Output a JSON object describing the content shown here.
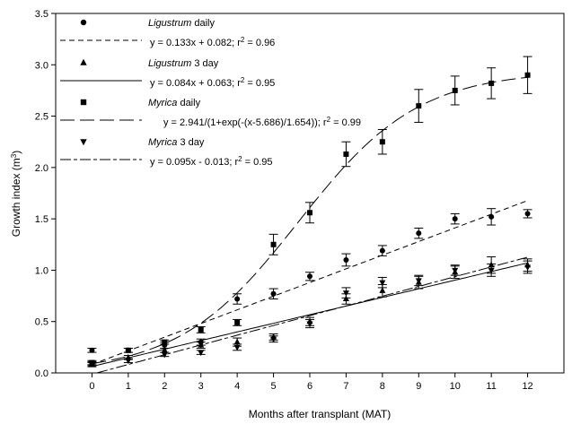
{
  "chart_data": {
    "type": "scatter",
    "xlabel": "Months after transplant (MAT)",
    "ylabel": "Growth index (m",
    "ylabel_sup": "3",
    "ylabel_close": ")",
    "xlim": [
      -1,
      13
    ],
    "ylim": [
      0,
      3.5
    ],
    "xticks": [
      0,
      1,
      2,
      3,
      4,
      5,
      6,
      7,
      8,
      9,
      10,
      11,
      12
    ],
    "yticks": [
      0.0,
      0.5,
      1.0,
      1.5,
      2.0,
      2.5,
      3.0,
      3.5
    ],
    "ytick_labels": [
      "0.0",
      "0.5",
      "1.0",
      "1.5",
      "2.0",
      "2.5",
      "3.0",
      "3.5"
    ],
    "grid": false,
    "legend_position": "top-left",
    "series": [
      {
        "name_italic": "Ligustrum",
        "name_rest": " daily",
        "marker": "circle",
        "dash": "6,4",
        "x": [
          0,
          1,
          2,
          3,
          4,
          5,
          6,
          7,
          8,
          9,
          10,
          11,
          12
        ],
        "y": [
          0.22,
          0.22,
          0.27,
          0.3,
          0.72,
          0.77,
          0.94,
          1.1,
          1.19,
          1.36,
          1.5,
          1.52,
          1.55
        ],
        "err": [
          0.02,
          0.02,
          0.03,
          0.03,
          0.05,
          0.05,
          0.04,
          0.06,
          0.05,
          0.05,
          0.05,
          0.08,
          0.04
        ],
        "eq_parts": [
          "y = 0.133x + 0.082; r",
          "2",
          " = 0.96"
        ],
        "fit": {
          "kind": "linear",
          "a": 0.133,
          "b": 0.082
        }
      },
      {
        "name_italic": "Ligustrum",
        "name_rest": " 3 day",
        "marker": "triangle-up",
        "dash": "",
        "x": [
          0,
          1,
          2,
          3,
          4,
          5,
          6,
          7,
          8,
          9,
          10,
          11,
          12
        ],
        "y": [
          0.08,
          0.15,
          0.22,
          0.27,
          0.3,
          0.35,
          0.5,
          0.72,
          0.8,
          0.88,
          0.98,
          1.05,
          1.05
        ],
        "err": [
          0.02,
          0.02,
          0.02,
          0.03,
          0.04,
          0.03,
          0.04,
          0.05,
          0.06,
          0.06,
          0.06,
          0.08,
          0.06
        ],
        "eq_parts": [
          "y = 0.084x + 0.063; r",
          "2",
          " = 0.95"
        ],
        "fit": {
          "kind": "linear",
          "a": 0.084,
          "b": 0.063
        }
      },
      {
        "name_italic": "Myrica",
        "name_rest": " daily",
        "marker": "square",
        "dash": "16,6",
        "x": [
          0,
          1,
          2,
          3,
          4,
          5,
          6,
          7,
          8,
          9,
          10,
          11,
          12
        ],
        "y": [
          0.1,
          0.22,
          0.3,
          0.42,
          0.49,
          1.25,
          1.56,
          2.13,
          2.25,
          2.6,
          2.75,
          2.82,
          2.9
        ],
        "err": [
          0.02,
          0.02,
          0.02,
          0.03,
          0.03,
          0.1,
          0.1,
          0.12,
          0.12,
          0.16,
          0.14,
          0.15,
          0.18
        ],
        "eq_parts": [
          "y = 2.941/(1+exp(-(x-5.686)/1.654)); r",
          "2",
          " = 0.99"
        ],
        "fit": {
          "kind": "sigmoid",
          "a": 2.941,
          "x0": 5.686,
          "b": 1.654
        }
      },
      {
        "name_italic": "Myrica",
        "name_rest": " 3 day",
        "marker": "triangle-down",
        "dash": "12,3,4,3",
        "x": [
          0,
          1,
          2,
          3,
          4,
          5,
          6,
          7,
          8,
          9,
          10,
          11,
          12
        ],
        "y": [
          0.09,
          0.12,
          0.18,
          0.2,
          0.25,
          0.33,
          0.48,
          0.78,
          0.88,
          0.9,
          1.0,
          1.0,
          1.03
        ],
        "err": [
          0.02,
          0.02,
          0.02,
          0.02,
          0.03,
          0.03,
          0.04,
          0.05,
          0.05,
          0.05,
          0.05,
          0.06,
          0.06
        ],
        "eq_parts": [
          "y = 0.095x - 0.013; r",
          "2",
          " = 0.95"
        ],
        "fit": {
          "kind": "linear",
          "a": 0.095,
          "b": -0.013
        }
      }
    ]
  }
}
